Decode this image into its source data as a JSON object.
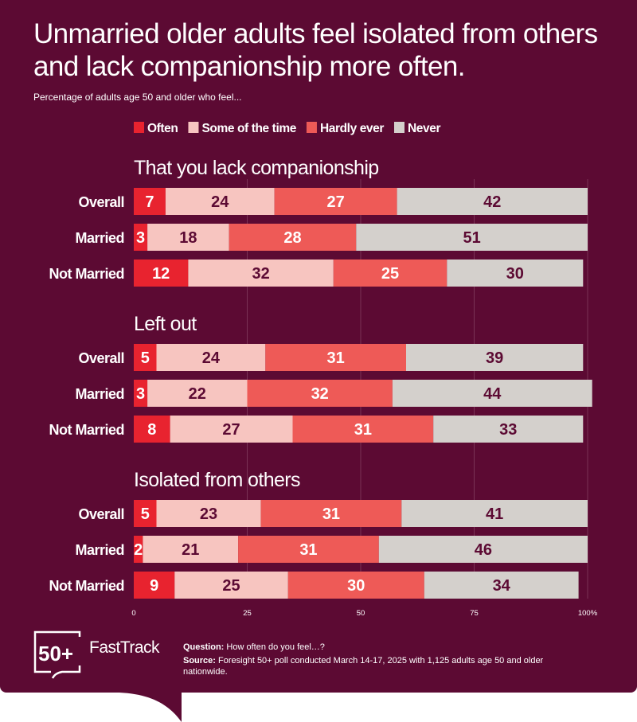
{
  "title": "Unmarried older adults feel isolated from others and lack companionship more often.",
  "subtitle": "Percentage of adults age 50 and older who feel...",
  "chart_data": {
    "type": "bar",
    "orientation": "horizontal",
    "stacked": true,
    "legend_position": "top",
    "grid": true,
    "xlim": [
      0,
      100
    ],
    "x_ticks": [
      "0",
      "25",
      "50",
      "75",
      "100%"
    ],
    "series": [
      {
        "name": "Often",
        "color": "#e8232f"
      },
      {
        "name": "Some of the time",
        "color": "#f7c5c0"
      },
      {
        "name": "Hardly ever",
        "color": "#ee5a57"
      },
      {
        "name": "Never",
        "color": "#d4d0cc"
      }
    ],
    "panels": [
      {
        "title": "That you lack companionship",
        "rows": [
          {
            "label": "Overall",
            "values": [
              7,
              24,
              27,
              42
            ]
          },
          {
            "label": "Married",
            "values": [
              3,
              18,
              28,
              51
            ]
          },
          {
            "label": "Not Married",
            "values": [
              12,
              32,
              25,
              30
            ]
          }
        ]
      },
      {
        "title": "Left out",
        "rows": [
          {
            "label": "Overall",
            "values": [
              5,
              24,
              31,
              39
            ]
          },
          {
            "label": "Married",
            "values": [
              3,
              22,
              32,
              44
            ]
          },
          {
            "label": "Not Married",
            "values": [
              8,
              27,
              31,
              33
            ]
          }
        ]
      },
      {
        "title": "Isolated from others",
        "rows": [
          {
            "label": "Overall",
            "values": [
              5,
              23,
              31,
              41
            ]
          },
          {
            "label": "Married",
            "values": [
              2,
              21,
              31,
              46
            ]
          },
          {
            "label": "Not Married",
            "values": [
              9,
              25,
              30,
              34
            ]
          }
        ]
      }
    ]
  },
  "footer": {
    "logo_text": "50+",
    "brand": "FastTrack",
    "question_label": "Question:",
    "question": "How often do you feel…?",
    "source_label": "Source:",
    "source": "Foresight 50+ poll conducted March 14-17, 2025 with 1,125 adults age 50 and older nationwide."
  }
}
